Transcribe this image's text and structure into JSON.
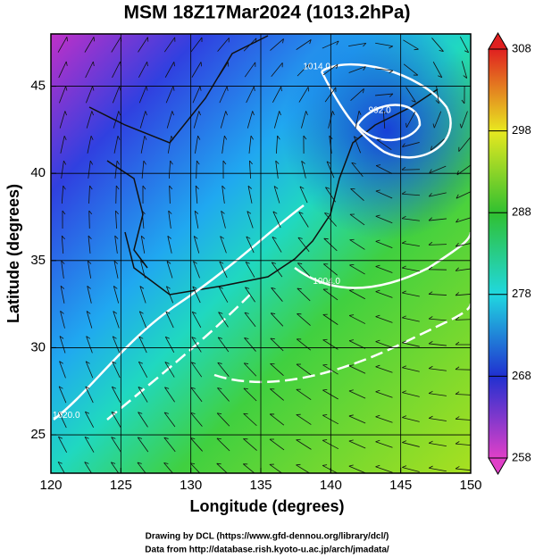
{
  "chart_data": {
    "type": "map",
    "title": "MSM 18Z17Mar2024 (1013.2hPa)",
    "xlabel": "Longitude (degrees)",
    "ylabel": "Latitude  (degrees)",
    "xlim": [
      120,
      150
    ],
    "ylim": [
      22.8,
      48.0
    ],
    "xticks": [
      120,
      125,
      130,
      135,
      140,
      145,
      150
    ],
    "yticks": [
      25,
      30,
      35,
      40,
      45
    ],
    "grid": true,
    "colorbar": {
      "lim": [
        258,
        308
      ],
      "ticks": [
        258,
        268,
        278,
        288,
        298,
        308
      ],
      "colors": [
        "#e040c8",
        "#2030d0",
        "#20d8e0",
        "#30c030",
        "#e8e820",
        "#e02020"
      ]
    },
    "contour_labels": [
      {
        "lon": 139.0,
        "lat": 46.1,
        "value": 1014,
        "label": "1014.0"
      },
      {
        "lon": 143.5,
        "lat": 43.6,
        "value": 992,
        "label": "992.0"
      },
      {
        "lon": 139.7,
        "lat": 33.8,
        "value": 1004,
        "label": "1004.0"
      },
      {
        "lon": 121.1,
        "lat": 26.1,
        "value": 1020,
        "label": "1020.0"
      }
    ]
  },
  "footer": [
    "Drawing by DCL (https://www.gfd-dennou.org/library/dcl/)",
    "Data from http://database.rish.kyoto-u.ac.jp/arch/jmadata/"
  ]
}
